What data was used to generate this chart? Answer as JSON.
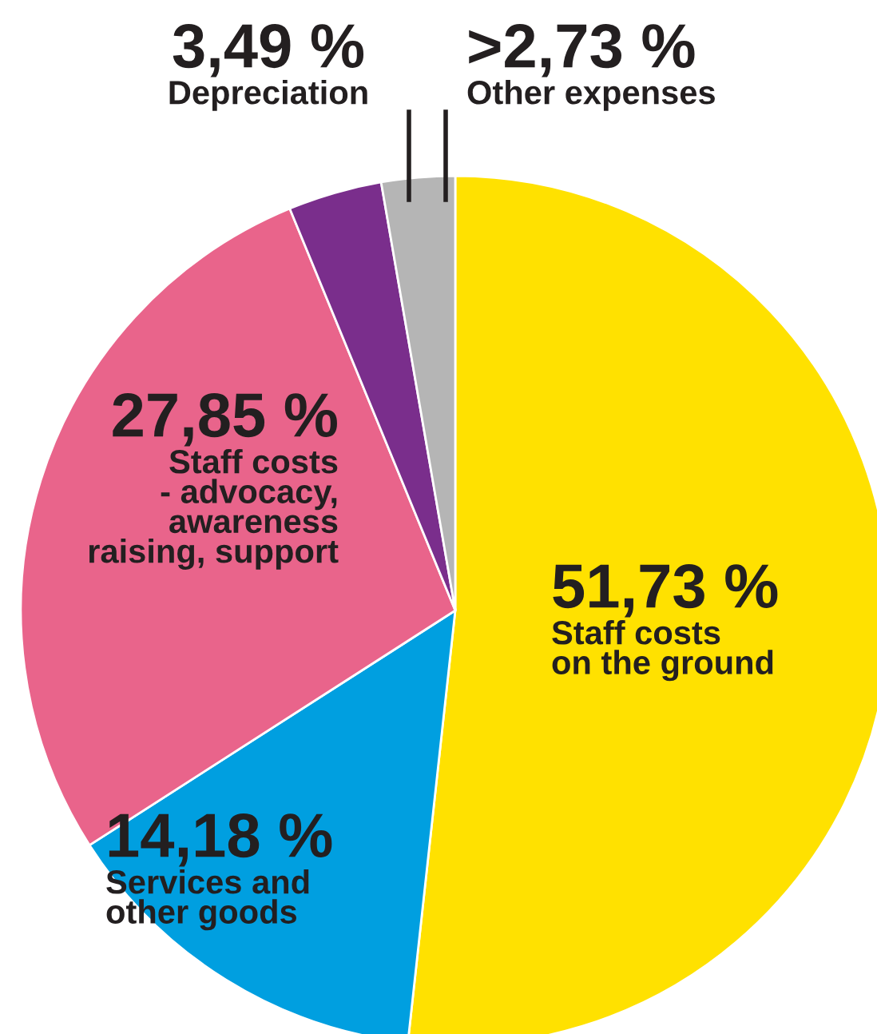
{
  "chart_data": {
    "type": "pie",
    "categories": [
      "Staff costs\non the ground",
      "Services and\nother goods",
      "Staff costs\n- advocacy,\nawareness\nraising, support",
      "Depreciation",
      "Other expenses"
    ],
    "values": [
      51.73,
      14.18,
      27.85,
      3.49,
      2.73
    ],
    "value_labels": [
      "51,73 %",
      "14,18 %",
      "27,85 %",
      "3,49 %",
      ">2,73 %"
    ],
    "colors": [
      "#ffe100",
      "#009fe0",
      "#e9648b",
      "#7a2e8c",
      "#b5b5b5"
    ],
    "legend": false
  }
}
